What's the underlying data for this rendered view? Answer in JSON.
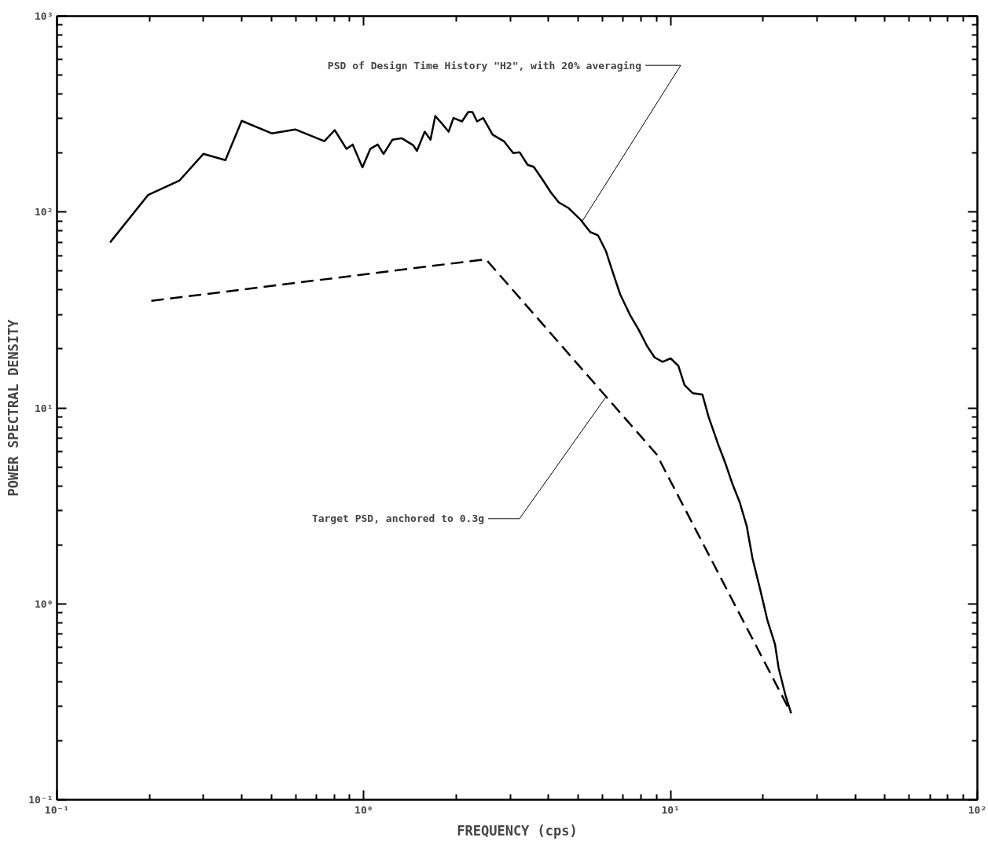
{
  "chart_data": {
    "type": "line",
    "xlabel": "FREQUENCY (cps)",
    "ylabel": "POWER SPECTRAL DENSITY",
    "log": "xy",
    "grid": false,
    "xlim": [
      0.1,
      100
    ],
    "ylim": [
      0.1,
      1000
    ],
    "xticks": [
      {
        "value": 0.1,
        "label": "10⁻¹"
      },
      {
        "value": 1,
        "label": "10⁰"
      },
      {
        "value": 10,
        "label": "10¹"
      },
      {
        "value": 100,
        "label": "10²"
      }
    ],
    "yticks": [
      {
        "value": 0.1,
        "label": "10⁻¹"
      },
      {
        "value": 1,
        "label": "10⁰"
      },
      {
        "value": 10,
        "label": "10¹"
      },
      {
        "value": 100,
        "label": "10²"
      },
      {
        "value": 1000,
        "label": "10³"
      }
    ],
    "series": [
      {
        "color": "#000000",
        "line_style": "solid",
        "x": [
          0.149,
          0.198,
          0.251,
          0.3,
          0.354,
          0.4,
          0.501,
          0.598,
          0.744,
          0.804,
          0.878,
          0.92,
          0.99,
          1.05,
          1.11,
          1.16,
          1.24,
          1.33,
          1.45,
          1.49,
          1.58,
          1.65,
          1.71,
          1.8,
          1.89,
          1.96,
          2.09,
          2.19,
          2.26,
          2.34,
          2.45,
          2.63,
          2.86,
          3.07,
          3.22,
          3.42,
          3.58,
          3.84,
          4.07,
          4.32,
          4.64,
          5.1,
          5.47,
          5.8,
          6.16,
          6.46,
          6.85,
          7.36,
          7.88,
          8.38,
          8.87,
          9.42,
          10.0,
          10.6,
          11.1,
          11.8,
          12.7,
          13.3,
          14.3,
          15.1,
          15.9,
          16.8,
          17.7,
          18.5,
          19.6,
          20.7,
          21.9,
          22.5,
          23.7,
          24.7
        ],
        "values": [
          70,
          122,
          145,
          198,
          184,
          292,
          252,
          264,
          230,
          262,
          210,
          221,
          169,
          210,
          221,
          198,
          234,
          238,
          219,
          205,
          257,
          234,
          309,
          282,
          257,
          302,
          290,
          324,
          324,
          290,
          302,
          248,
          230,
          200,
          202,
          174,
          170,
          145,
          126,
          112,
          105,
          91,
          79,
          76,
          63,
          50,
          38,
          30,
          25,
          20.7,
          18.1,
          17.2,
          17.9,
          16.4,
          13.1,
          11.9,
          11.7,
          9.0,
          6.5,
          5.2,
          4.1,
          3.3,
          2.5,
          1.7,
          1.18,
          0.82,
          0.62,
          0.47,
          0.34,
          0.277
        ]
      },
      {
        "color": "#000000",
        "line_style": "dashed",
        "x": [
          0.203,
          2.5,
          9.0,
          24.7
        ],
        "values": [
          35.2,
          57.4,
          5.8,
          0.277
        ]
      }
    ],
    "annotations": [
      {
        "text": "PSD of Design Time History \"H2\", with 20% averaging",
        "x": 5.16,
        "y": 90
      },
      {
        "text": "Target PSD, anchored to 0.3g",
        "x": 6.16,
        "y": 11.4
      }
    ]
  }
}
